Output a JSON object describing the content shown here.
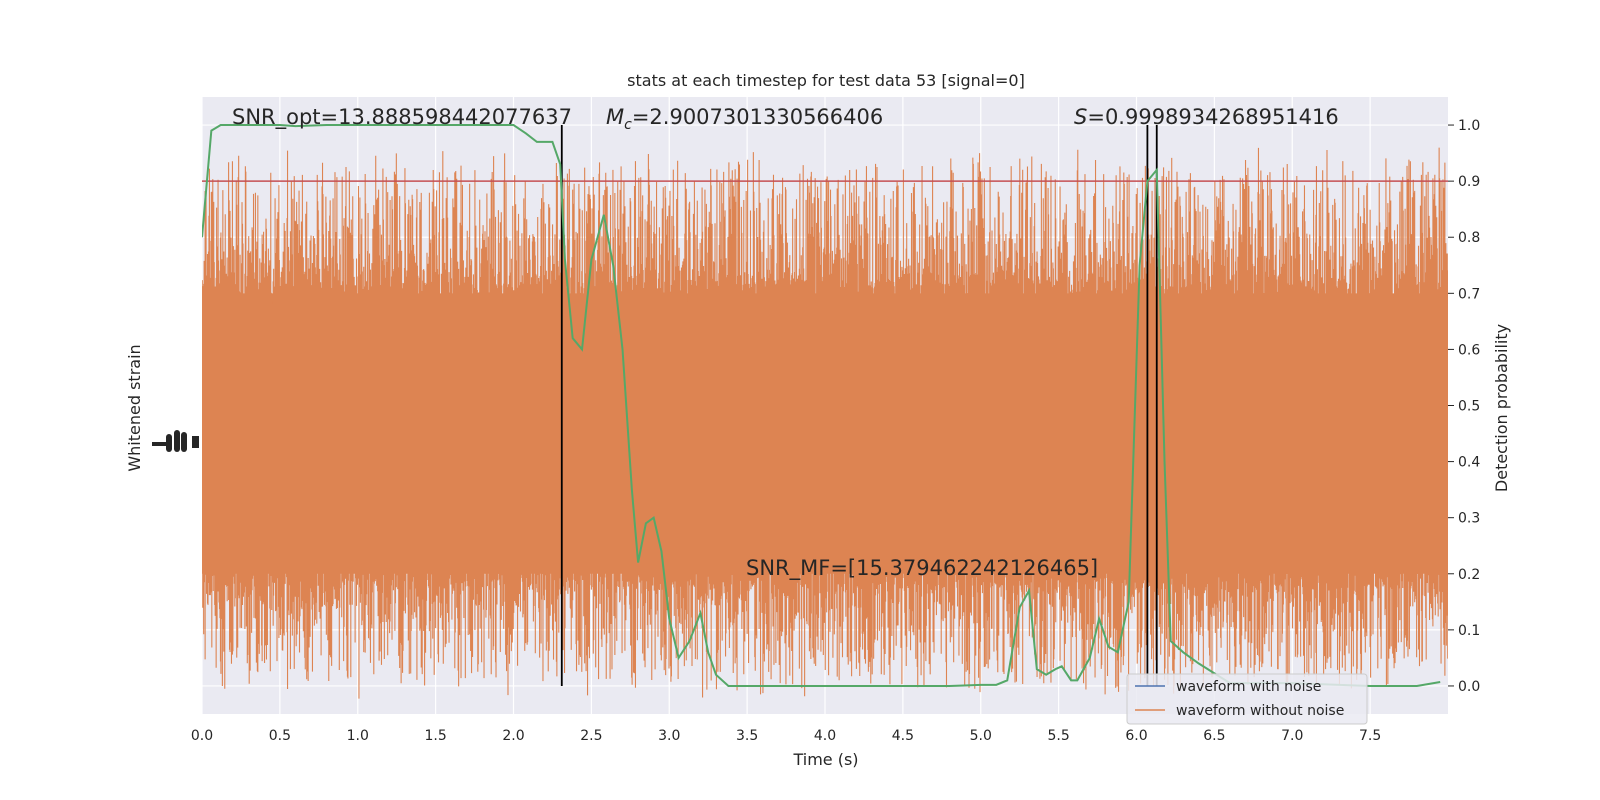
{
  "chart_data": {
    "type": "line",
    "title": "stats at each timestep for test data 53 [signal=0]",
    "xlabel": "Time (s)",
    "ylabel_left": "Whitened strain",
    "ylabel_right": "Detection probability",
    "xlim": [
      0,
      8
    ],
    "ylim_right": [
      -0.05,
      1.05
    ],
    "x_ticks": [
      0.0,
      0.5,
      1.0,
      1.5,
      2.0,
      2.5,
      3.0,
      3.5,
      4.0,
      4.5,
      5.0,
      5.5,
      6.0,
      6.5,
      7.0,
      7.5
    ],
    "x_tick_labels": [
      "0.0",
      "0.5",
      "1.0",
      "1.5",
      "2.0",
      "2.5",
      "3.0",
      "3.5",
      "4.0",
      "4.5",
      "5.0",
      "5.5",
      "6.0",
      "6.5",
      "7.0",
      "7.5"
    ],
    "y_right_ticks": [
      0.0,
      0.1,
      0.2,
      0.3,
      0.4,
      0.5,
      0.6,
      0.7,
      0.8,
      0.9,
      1.0
    ],
    "y_right_tick_labels": [
      "0.0",
      "0.1",
      "0.2",
      "0.3",
      "0.4",
      "0.5",
      "0.6",
      "0.7",
      "0.8",
      "0.9",
      "1.0"
    ],
    "grid": true,
    "threshold": {
      "y": 0.9,
      "color": "#c44e52"
    },
    "vlines": [
      2.31,
      6.07,
      6.13
    ],
    "annotations": {
      "snr_opt": "SNR_opt=13.888598442077637",
      "mc_symbol": "M",
      "mc_sub": "c",
      "mc_value": "=2.9007301330566406",
      "s_symbol": "S",
      "s_value": "=0.9998934268951416",
      "snr_mf": "SNR_MF=[15.379462242126465]"
    },
    "series": [
      {
        "name": "waveform with noise",
        "color": "#4c72b0",
        "axis": "left"
      },
      {
        "name": "waveform without noise",
        "color": "#dd8452",
        "axis": "left",
        "band_y": [
          0.2,
          0.7
        ],
        "spike_y_range": [
          0.0,
          0.94
        ]
      },
      {
        "color": "#55a868",
        "axis": "right",
        "x": [
          0.0,
          0.06,
          0.12,
          0.2,
          0.3,
          0.4,
          0.5,
          0.6,
          0.8,
          1.0,
          1.2,
          1.4,
          1.6,
          1.8,
          2.0,
          2.08,
          2.15,
          2.25,
          2.3,
          2.33,
          2.38,
          2.44,
          2.5,
          2.58,
          2.64,
          2.7,
          2.76,
          2.8,
          2.85,
          2.9,
          2.95,
          3.0,
          3.06,
          3.13,
          3.2,
          3.25,
          3.3,
          3.38,
          3.5,
          3.8,
          4.0,
          4.2,
          4.4,
          4.6,
          4.8,
          5.0,
          5.1,
          5.17,
          5.25,
          5.31,
          5.36,
          5.42,
          5.48,
          5.52,
          5.58,
          5.62,
          5.7,
          5.76,
          5.82,
          5.88,
          5.95,
          6.02,
          6.07,
          6.13,
          6.18,
          6.22,
          6.3,
          6.4,
          6.6,
          7.0,
          7.5,
          7.8,
          7.95
        ],
        "y": [
          0.8,
          0.99,
          1.0,
          1.0,
          1.0,
          1.0,
          1.0,
          0.998,
          1.0,
          1.0,
          1.0,
          1.0,
          1.0,
          1.0,
          1.0,
          0.985,
          0.97,
          0.97,
          0.93,
          0.76,
          0.62,
          0.6,
          0.76,
          0.84,
          0.75,
          0.6,
          0.35,
          0.22,
          0.29,
          0.3,
          0.24,
          0.12,
          0.05,
          0.08,
          0.13,
          0.06,
          0.02,
          0.0,
          0.0,
          0.0,
          0.0,
          0.0,
          0.0,
          0.0,
          0.0,
          0.002,
          0.002,
          0.01,
          0.14,
          0.17,
          0.03,
          0.02,
          0.03,
          0.035,
          0.01,
          0.01,
          0.05,
          0.12,
          0.07,
          0.06,
          0.15,
          0.75,
          0.9,
          0.92,
          0.4,
          0.08,
          0.06,
          0.04,
          0.005,
          0.005,
          0.0,
          0.0,
          0.007
        ]
      }
    ],
    "legend": {
      "placement": "lower-right"
    }
  }
}
